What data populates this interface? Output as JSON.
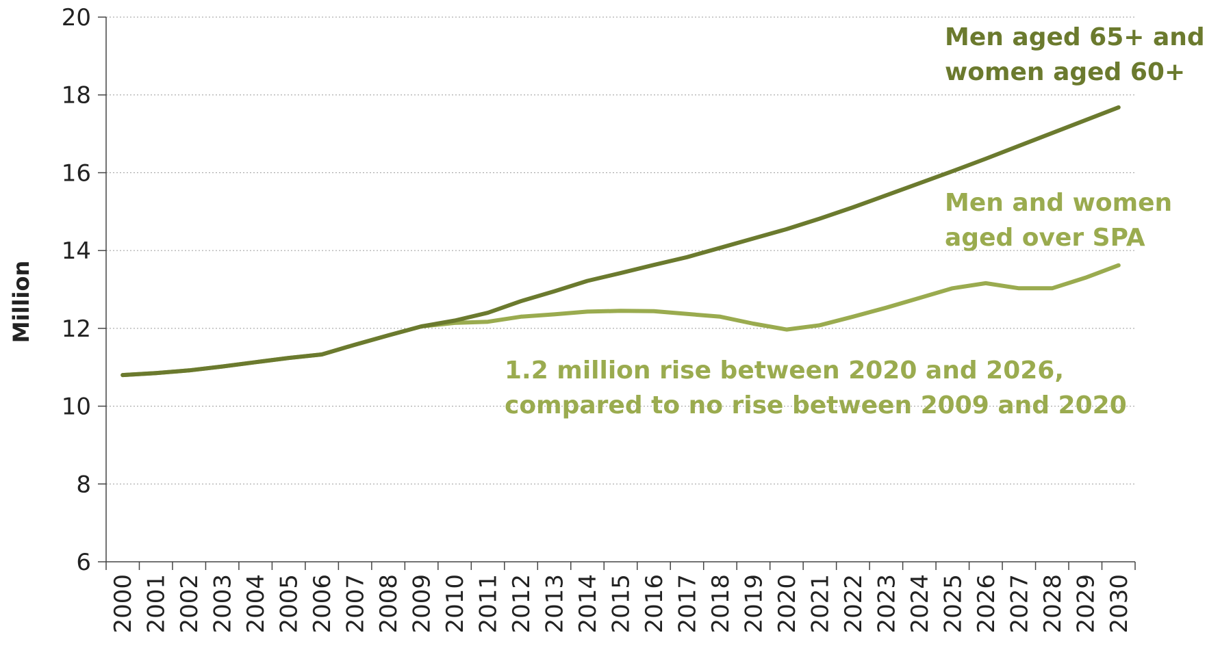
{
  "chart_data": {
    "type": "line",
    "title": "",
    "xlabel": "",
    "ylabel": "Million",
    "ylim": [
      6,
      20
    ],
    "yticks": [
      6,
      8,
      10,
      12,
      14,
      16,
      18,
      20
    ],
    "grid": "horizontal dotted",
    "x": [
      "2000",
      "2001",
      "2002",
      "2003",
      "2004",
      "2005",
      "2006",
      "2007",
      "2008",
      "2009",
      "2010",
      "2011",
      "2012",
      "2013",
      "2014",
      "2015",
      "2016",
      "2017",
      "2018",
      "2019",
      "2020",
      "2021",
      "2022",
      "2023",
      "2024",
      "2025",
      "2026",
      "2027",
      "2028",
      "2029",
      "2030"
    ],
    "series": [
      {
        "name": "Men aged 65+ and women aged 60+",
        "color": "#6b7a2e",
        "values": [
          10.8,
          10.85,
          10.92,
          11.02,
          11.13,
          11.24,
          11.33,
          11.58,
          11.82,
          12.05,
          12.2,
          12.4,
          12.7,
          12.95,
          13.22,
          13.42,
          13.63,
          13.83,
          14.07,
          14.31,
          14.55,
          14.82,
          15.11,
          15.42,
          15.73,
          16.04,
          16.36,
          16.69,
          17.02,
          17.35,
          17.68
        ]
      },
      {
        "name": "Men and women aged over SPA",
        "color": "#9aab4f",
        "values": [
          10.8,
          10.85,
          10.92,
          11.02,
          11.13,
          11.24,
          11.33,
          11.58,
          11.82,
          12.05,
          12.14,
          12.17,
          12.3,
          12.36,
          12.43,
          12.45,
          12.44,
          12.37,
          12.3,
          12.12,
          11.97,
          12.08,
          12.3,
          12.53,
          12.78,
          13.03,
          13.16,
          13.03,
          13.03,
          13.3,
          13.62
        ]
      }
    ],
    "annotations": [
      {
        "name": "series-label-1",
        "lines": [
          "Men aged 65+ and",
          "women aged 60+"
        ],
        "color": "#6b7a2e"
      },
      {
        "name": "series-label-2",
        "lines": [
          "Men and women",
          "aged over SPA"
        ],
        "color": "#9aab4f"
      },
      {
        "name": "rise-annotation",
        "lines": [
          "1.2 million rise between 2020 and 2026,",
          "compared to no rise between 2009 and 2020"
        ],
        "color": "#9aab4f"
      }
    ]
  }
}
